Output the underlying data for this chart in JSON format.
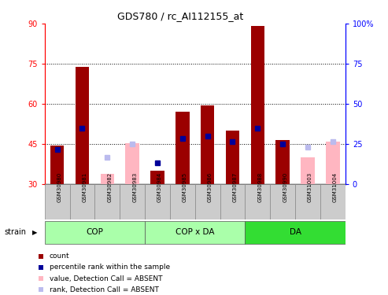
{
  "title": "GDS780 / rc_AI112155_at",
  "samples": [
    "GSM30980",
    "GSM30981",
    "GSM30982",
    "GSM30983",
    "GSM30984",
    "GSM30985",
    "GSM30986",
    "GSM30987",
    "GSM30988",
    "GSM30990",
    "GSM31003",
    "GSM31004"
  ],
  "count_values": [
    44.5,
    74.0,
    null,
    null,
    35.0,
    57.0,
    59.5,
    50.0,
    89.0,
    46.5,
    null,
    null
  ],
  "rank_values": [
    43.0,
    51.0,
    null,
    null,
    38.0,
    47.0,
    48.0,
    46.0,
    51.0,
    45.0,
    null,
    null
  ],
  "count_absent": [
    null,
    null,
    34.0,
    45.5,
    null,
    null,
    null,
    null,
    null,
    null,
    40.0,
    46.0
  ],
  "rank_absent": [
    null,
    null,
    40.0,
    45.0,
    null,
    null,
    null,
    null,
    null,
    null,
    44.0,
    46.0
  ],
  "count_color": "#9B0000",
  "rank_color": "#000099",
  "count_absent_color": "#FFB6C1",
  "rank_absent_color": "#BBBBEE",
  "ylim_left": [
    30,
    90
  ],
  "ylim_right": [
    0,
    100
  ],
  "yticks_left": [
    30,
    45,
    60,
    75,
    90
  ],
  "yticks_right": [
    0,
    25,
    50,
    75,
    100
  ],
  "hlines": [
    45,
    60,
    75
  ],
  "bar_width": 0.55,
  "marker_size": 5,
  "group_light": "#AAFFAA",
  "group_dark": "#33DD33",
  "group_info": [
    {
      "start": 0,
      "end": 3,
      "label": "COP",
      "dark": false
    },
    {
      "start": 4,
      "end": 7,
      "label": "COP x DA",
      "dark": false
    },
    {
      "start": 8,
      "end": 11,
      "label": "DA",
      "dark": true
    }
  ],
  "legend": [
    {
      "label": "count",
      "color": "#9B0000"
    },
    {
      "label": "percentile rank within the sample",
      "color": "#000099"
    },
    {
      "label": "value, Detection Call = ABSENT",
      "color": "#FFB6C1"
    },
    {
      "label": "rank, Detection Call = ABSENT",
      "color": "#BBBBEE"
    }
  ]
}
